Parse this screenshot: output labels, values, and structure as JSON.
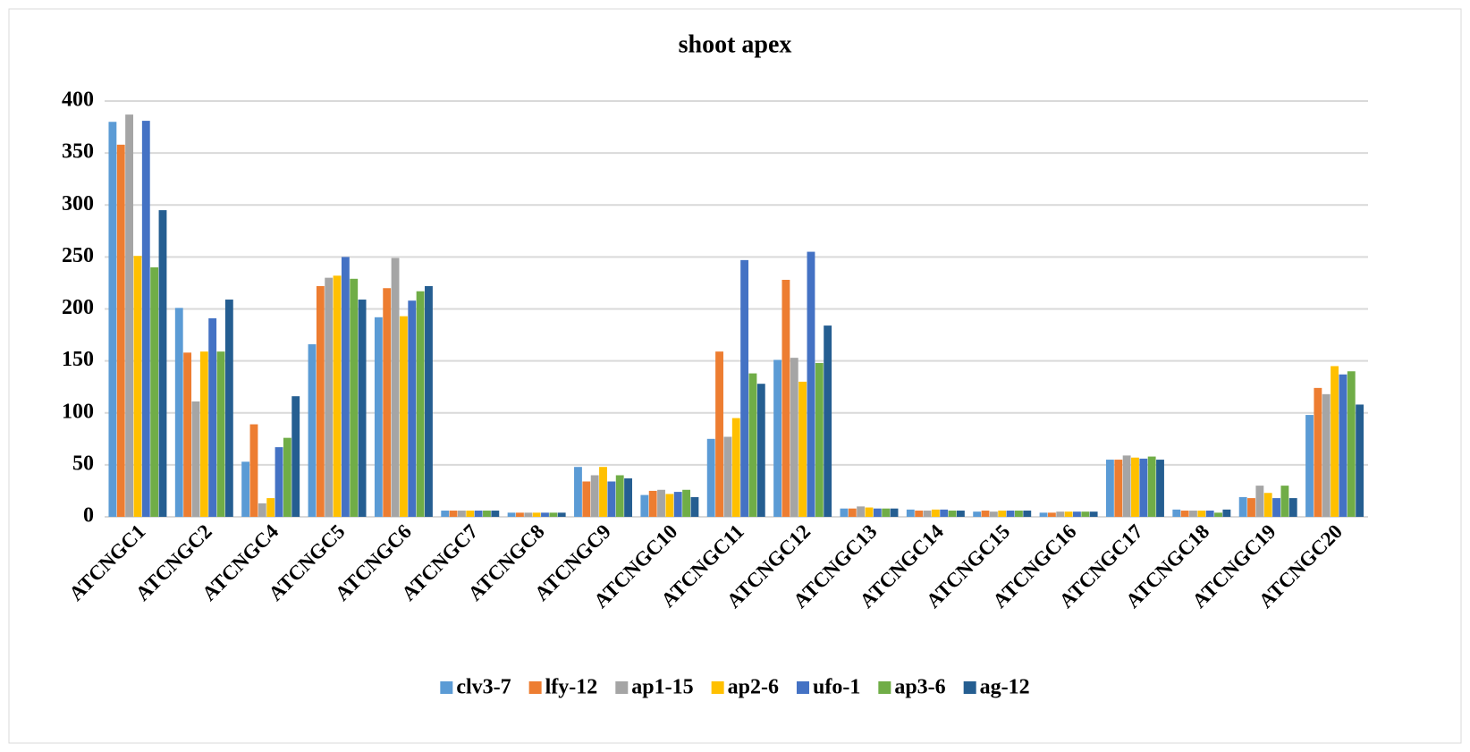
{
  "chart_data": {
    "type": "bar",
    "title": "shoot apex",
    "categories": [
      "ATCNGC1",
      "ATCNGC2",
      "ATCNGC4",
      "ATCNGC5",
      "ATCNGC6",
      "ATCNGC7",
      "ATCNGC8",
      "ATCNGC9",
      "ATCNGC10",
      "ATCNGC11",
      "ATCNGC12",
      "ATCNGC13",
      "ATCNGC14",
      "ATCNGC15",
      "ATCNGC16",
      "ATCNGC17",
      "ATCNGC18",
      "ATCNGC19",
      "ATCNGC20"
    ],
    "series": [
      {
        "name": "clv3-7",
        "color": "#5b9bd5",
        "values": [
          380,
          201,
          53,
          166,
          192,
          6,
          4,
          48,
          21,
          75,
          151,
          8,
          7,
          5,
          4,
          55,
          7,
          19,
          98
        ]
      },
      {
        "name": "lfy-12",
        "color": "#ed7d31",
        "values": [
          358,
          158,
          89,
          222,
          220,
          6,
          4,
          34,
          25,
          159,
          228,
          8,
          6,
          6,
          4,
          55,
          6,
          18,
          124
        ]
      },
      {
        "name": "ap1-15",
        "color": "#a5a5a5",
        "values": [
          387,
          111,
          13,
          230,
          249,
          6,
          4,
          40,
          26,
          77,
          153,
          10,
          6,
          5,
          5,
          59,
          6,
          30,
          118
        ]
      },
      {
        "name": "ap2-6",
        "color": "#ffc000",
        "values": [
          251,
          159,
          18,
          232,
          193,
          6,
          4,
          48,
          22,
          95,
          130,
          9,
          7,
          6,
          5,
          57,
          6,
          23,
          145
        ]
      },
      {
        "name": "ufo-1",
        "color": "#4472c4",
        "values": [
          381,
          191,
          67,
          250,
          208,
          6,
          4,
          34,
          24,
          247,
          255,
          8,
          7,
          6,
          5,
          56,
          6,
          18,
          137
        ]
      },
      {
        "name": "ap3-6",
        "color": "#70ad47",
        "values": [
          240,
          159,
          76,
          229,
          217,
          6,
          4,
          40,
          26,
          138,
          148,
          8,
          6,
          6,
          5,
          58,
          4,
          30,
          140
        ]
      },
      {
        "name": "ag-12",
        "color": "#255e91",
        "values": [
          295,
          209,
          116,
          209,
          222,
          6,
          4,
          37,
          19,
          128,
          184,
          8,
          6,
          6,
          5,
          55,
          7,
          18,
          108
        ]
      }
    ],
    "ylim": [
      0,
      400
    ],
    "yticks": [
      0,
      50,
      100,
      150,
      200,
      250,
      300,
      350,
      400
    ],
    "grid": true,
    "legend": "bottom"
  }
}
